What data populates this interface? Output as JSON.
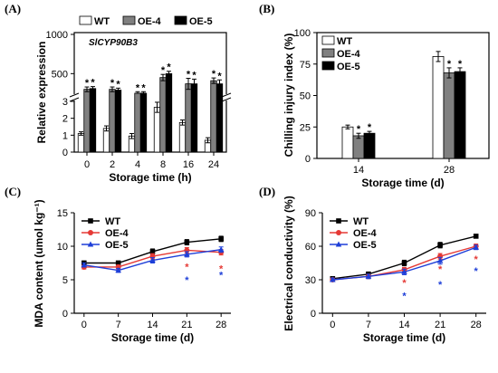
{
  "chart_data": [
    {
      "panel": "(A)",
      "type": "bar",
      "annotation": "SlCYP90B3",
      "xlabel": "Storage time (h)",
      "ylabel": "Relative expression",
      "categories": [
        "0",
        "2",
        "4",
        "8",
        "16",
        "24"
      ],
      "y_axis": {
        "broken": true,
        "lower_range": [
          0,
          3
        ],
        "lower_ticks": [
          "0",
          "1",
          "2",
          "3"
        ],
        "upper_range": [
          250,
          1000
        ],
        "upper_ticks": [
          "500",
          "1000"
        ]
      },
      "series": [
        {
          "name": "WT",
          "values": [
            1.1,
            1.4,
            0.95,
            2.65,
            1.75,
            0.7
          ],
          "errors": [
            0.1,
            0.15,
            0.15,
            0.3,
            0.15,
            0.15
          ],
          "stars": [
            "",
            "",
            "",
            "",
            "",
            ""
          ]
        },
        {
          "name": "OE-4",
          "values": [
            300,
            300,
            250,
            450,
            370,
            410
          ],
          "errors": [
            30,
            30,
            20,
            40,
            70,
            35
          ],
          "stars": [
            "*",
            "*",
            "*",
            "*",
            "*",
            "*"
          ]
        },
        {
          "name": "OE-5",
          "values": [
            310,
            290,
            250,
            500,
            370,
            370
          ],
          "errors": [
            25,
            25,
            20,
            30,
            60,
            50
          ],
          "stars": [
            "*",
            "*",
            "*",
            "*",
            "*",
            "*"
          ]
        }
      ],
      "legend": "top",
      "colors": {
        "WT": "#ffffff",
        "OE-4": "#808080",
        "OE-5": "#000000"
      }
    },
    {
      "panel": "(B)",
      "type": "bar",
      "xlabel": "Storage time (d)",
      "ylabel": "Chilling injury index (%)",
      "categories": [
        "14",
        "28"
      ],
      "ylim": [
        0,
        100
      ],
      "yticks": [
        "0",
        "25",
        "50",
        "75",
        "100"
      ],
      "series": [
        {
          "name": "WT",
          "values": [
            25,
            81
          ],
          "errors": [
            1.5,
            4
          ],
          "stars": [
            "",
            ""
          ]
        },
        {
          "name": "OE-4",
          "values": [
            18,
            68
          ],
          "errors": [
            2,
            4
          ],
          "stars": [
            "*",
            "*"
          ]
        },
        {
          "name": "OE-5",
          "values": [
            20,
            69
          ],
          "errors": [
            1.5,
            3
          ],
          "stars": [
            "*",
            "*"
          ]
        }
      ],
      "legend": "top-left",
      "colors": {
        "WT": "#ffffff",
        "OE-4": "#808080",
        "OE-5": "#000000"
      }
    },
    {
      "panel": "(C)",
      "type": "line",
      "xlabel": "Storage time (d)",
      "ylabel": "MDA content (umol kg⁻¹)",
      "x": [
        0,
        7,
        14,
        21,
        28
      ],
      "xticks": [
        "0",
        "7",
        "14",
        "21",
        "28"
      ],
      "ylim": [
        0,
        15
      ],
      "yticks": [
        "0",
        "5",
        "10",
        "15"
      ],
      "series": [
        {
          "name": "WT",
          "color": "#000000",
          "marker": "square",
          "values": [
            7.5,
            7.5,
            9.2,
            10.6,
            11.1
          ],
          "errors": [
            0.3,
            0.3,
            0.4,
            0.4,
            0.4
          ],
          "stars": [
            "",
            "",
            "",
            "",
            ""
          ]
        },
        {
          "name": "OE-4",
          "color": "#e53935",
          "marker": "circle",
          "values": [
            6.9,
            6.9,
            8.5,
            9.4,
            9.1
          ],
          "errors": [
            0.3,
            0.3,
            0.4,
            0.4,
            0.4
          ],
          "stars": [
            "",
            "",
            "",
            "*",
            "*"
          ]
        },
        {
          "name": "OE-5",
          "color": "#1e3fd8",
          "marker": "triangle",
          "values": [
            7.2,
            6.4,
            7.9,
            8.8,
            9.5
          ],
          "errors": [
            0.3,
            0.3,
            0.4,
            0.4,
            0.4
          ],
          "stars": [
            "",
            "",
            "",
            "*",
            "*"
          ]
        }
      ],
      "legend": "top-left"
    },
    {
      "panel": "(D)",
      "type": "line",
      "xlabel": "Storage time (d)",
      "ylabel": "Electrical conductivity (%)",
      "x": [
        0,
        7,
        14,
        21,
        28
      ],
      "xticks": [
        "0",
        "7",
        "14",
        "21",
        "28"
      ],
      "ylim": [
        0,
        90
      ],
      "yticks": [
        "0",
        "30",
        "60",
        "90"
      ],
      "series": [
        {
          "name": "WT",
          "color": "#000000",
          "marker": "square",
          "values": [
            31,
            35,
            45,
            61,
            69
          ],
          "errors": [
            1.5,
            2,
            2.5,
            2.5,
            1.5
          ],
          "stars": [
            "",
            "",
            "",
            "",
            ""
          ]
        },
        {
          "name": "OE-4",
          "color": "#e53935",
          "marker": "circle",
          "values": [
            30,
            33,
            39,
            51,
            60
          ],
          "errors": [
            1.5,
            2,
            2,
            2.5,
            2
          ],
          "stars": [
            "",
            "",
            "*",
            "*",
            "*"
          ]
        },
        {
          "name": "OE-5",
          "color": "#1e3fd8",
          "marker": "triangle",
          "values": [
            30,
            33,
            37,
            47,
            59
          ],
          "errors": [
            1.5,
            2,
            2.5,
            3,
            2
          ],
          "stars": [
            "",
            "",
            "*",
            "*",
            "*"
          ]
        }
      ],
      "legend": "top-left"
    }
  ]
}
